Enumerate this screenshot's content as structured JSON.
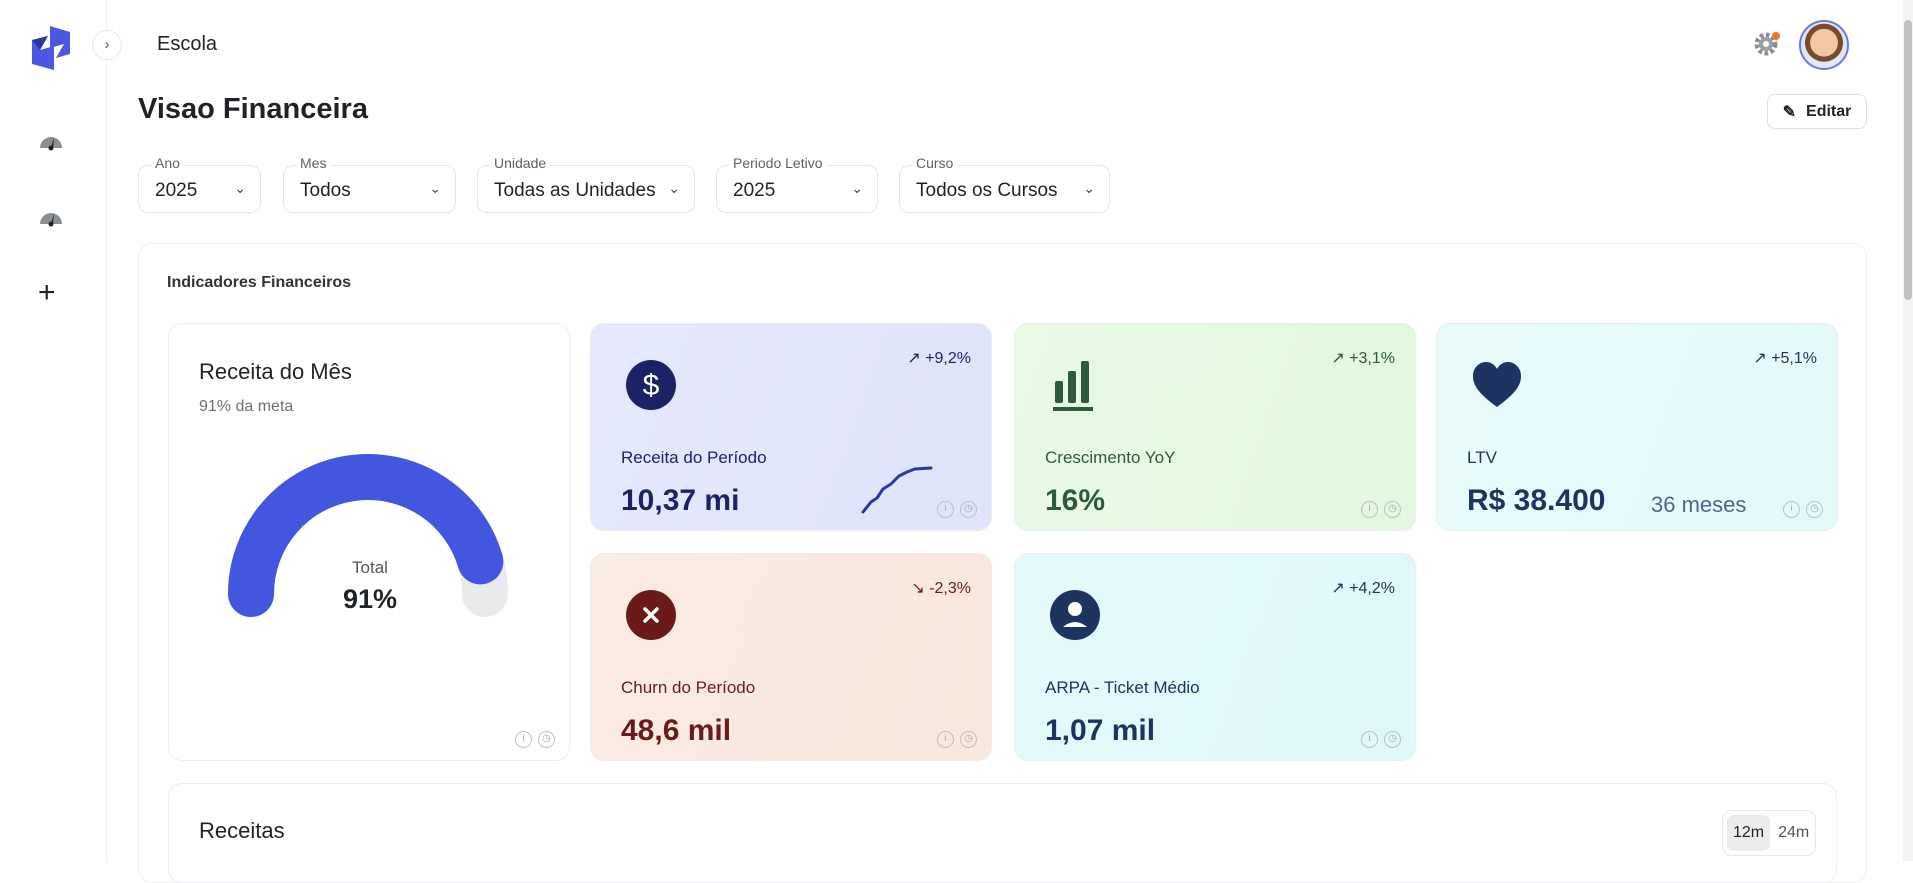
{
  "header": {
    "org": "Escola",
    "title": "Visao Financeira",
    "edit_label": "Editar"
  },
  "filters": [
    {
      "label": "Ano",
      "value": "2025"
    },
    {
      "label": "Mes",
      "value": "Todos"
    },
    {
      "label": "Unidade",
      "value": "Todas as Unidades"
    },
    {
      "label": "Periodo Letivo",
      "value": "2025"
    },
    {
      "label": "Curso",
      "value": "Todos os Cursos"
    }
  ],
  "section_title": "Indicadores Financeiros",
  "gauge": {
    "title": "Receita do Mês",
    "subtitle": "91% da meta",
    "center_label": "Total",
    "center_value": "91%",
    "percent": 91,
    "color": "#4356e0"
  },
  "kpis": [
    {
      "name": "Receita do Período",
      "value": "10,37 mi",
      "trend": "+9,2%",
      "direction": "up",
      "icon": "dollar-icon",
      "bg": "#dfe3fb",
      "fg": "#1c2266"
    },
    {
      "name": "Crescimento YoY",
      "value": "16%",
      "trend": "+3,1%",
      "direction": "up",
      "icon": "bar-chart-icon",
      "bg": "#e2f8de",
      "fg": "#2e5a3c"
    },
    {
      "name": "LTV",
      "value": "R$ 38.400",
      "extra": "36 meses",
      "trend": "+5,1%",
      "direction": "up",
      "icon": "heart-icon",
      "bg": "#e2fafa",
      "fg": "#1d3461"
    },
    {
      "name": "Churn do Período",
      "value": "48,6 mil",
      "trend": "-2,3%",
      "direction": "down",
      "icon": "x-circle-icon",
      "bg": "#f9e6dc",
      "fg": "#6b1a1a"
    },
    {
      "name": "ARPA - Ticket Médio",
      "value": "1,07 mil",
      "trend": "+4,2%",
      "direction": "up",
      "icon": "user-circle-icon",
      "bg": "#ddf8f9",
      "fg": "#1d3461"
    }
  ],
  "receitas": {
    "title": "Receitas",
    "ranges": [
      "12m",
      "24m"
    ],
    "selected": "12m"
  }
}
